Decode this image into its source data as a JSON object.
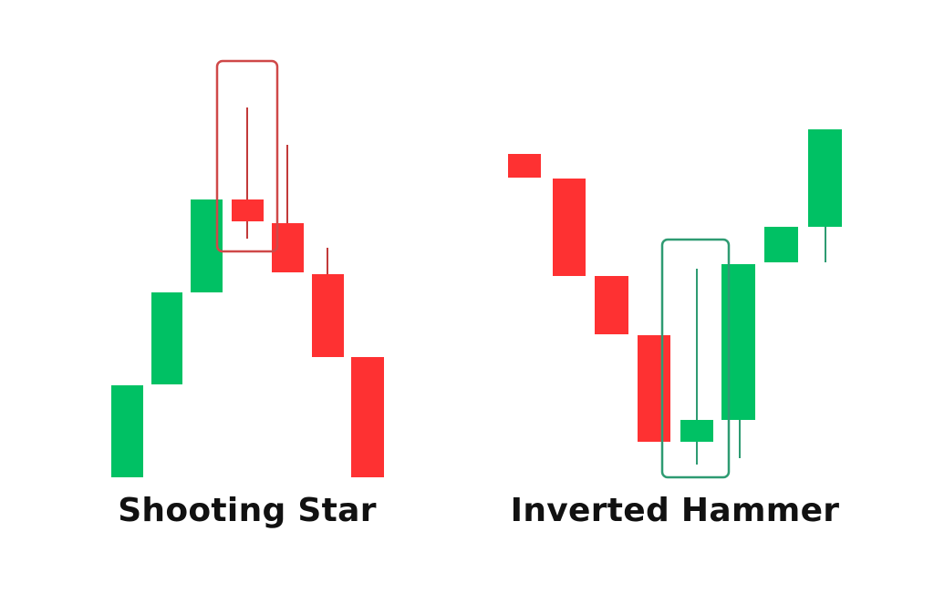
{
  "colors": {
    "bullish": "#00c164",
    "bearish": "#fe3132",
    "shooting_star_highlight": "#cf4848",
    "inverted_hammer_highlight": "#2e9b72",
    "wick": "#c23a3a",
    "background": "#ffffff"
  },
  "patterns": [
    {
      "name": "Shooting Star",
      "trend": "uptrend reversal to downtrend",
      "candles": [
        "bullish",
        "bullish",
        "bullish",
        "bearish",
        "bearish",
        "bearish",
        "bearish"
      ],
      "highlighted_candle": 4
    },
    {
      "name": "Inverted Hammer",
      "trend": "downtrend reversal to uptrend",
      "candles": [
        "bearish",
        "bearish",
        "bearish",
        "bearish",
        "bullish",
        "bullish",
        "bullish",
        "bullish"
      ],
      "highlighted_candle": 5
    }
  ]
}
